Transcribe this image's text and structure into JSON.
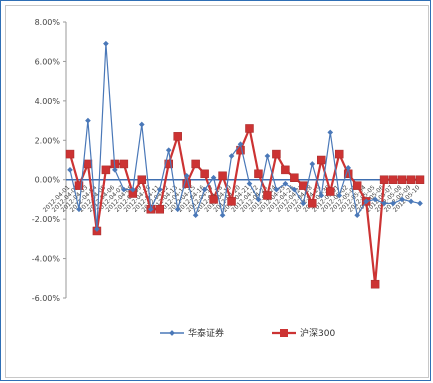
{
  "chart_data": {
    "type": "line",
    "title": "",
    "xlabel": "",
    "ylabel": "",
    "ylim": [
      -6,
      8
    ],
    "yticks": [
      "8.00%",
      "6.00%",
      "4.00%",
      "2.00%",
      "0.00%",
      "-2.00%",
      "-4.00%",
      "-6.00%"
    ],
    "ytick_values": [
      8,
      6,
      4,
      2,
      0,
      -2,
      -4,
      -6
    ],
    "x": [
      "2012-04-01",
      "2012-04-02",
      "2012-04-03",
      "2012-04-04",
      "2012-04-05",
      "2012-04-06",
      "2012-04-07",
      "2012-04-08",
      "2012-04-09",
      "2012-04-10",
      "2012-04-11",
      "2012-04-12",
      "2012-04-13",
      "2012-04-14",
      "2012-04-15",
      "2012-04-16",
      "2012-04-17",
      "2012-04-18",
      "2012-04-19",
      "2012-04-20",
      "2012-04-21",
      "2012-04-22",
      "2012-04-23",
      "2012-04-24",
      "2012-04-25",
      "2012-04-26",
      "2012-04-27",
      "2012-04-28",
      "2012-04-29",
      "2012-04-30",
      "2012-05-01",
      "2012-05-02",
      "2012-05-03",
      "2012-05-04",
      "2012-05-05",
      "2012-05-06",
      "2012-05-07",
      "2012-05-08",
      "2012-05-09",
      "2012-05-10"
    ],
    "series": [
      {
        "name": "华泰证券",
        "color": "#4a78b8",
        "values": [
          0.5,
          -1.5,
          3.0,
          -2.5,
          6.9,
          0.5,
          -0.5,
          -0.5,
          2.8,
          -1.5,
          -0.5,
          1.5,
          -1.5,
          0.2,
          -1.8,
          -0.5,
          0.1,
          -1.8,
          1.2,
          1.8,
          -0.2,
          -1.0,
          1.2,
          -0.5,
          -0.2,
          -0.5,
          -1.2,
          0.8,
          -0.8,
          2.4,
          -0.8,
          0.6,
          -1.8,
          -1.1,
          -1.0,
          -1.2,
          -1.2,
          -1.0,
          -1.1,
          -1.2
        ]
      },
      {
        "name": "沪深300",
        "color": "#cc3333",
        "values": [
          1.3,
          -0.3,
          0.8,
          -2.6,
          0.5,
          0.8,
          0.8,
          -0.7,
          0.0,
          -1.5,
          -1.5,
          0.8,
          2.2,
          -0.2,
          0.8,
          0.3,
          -1.0,
          0.2,
          -1.1,
          1.5,
          2.6,
          0.3,
          -0.8,
          1.3,
          0.5,
          0.1,
          -0.3,
          -1.2,
          1.0,
          -0.6,
          1.3,
          0.3,
          -0.3,
          -1.1,
          -5.3,
          0.0,
          0.0,
          0.0,
          0.0,
          0.0
        ]
      }
    ],
    "legend_position": "bottom",
    "grid": false
  }
}
